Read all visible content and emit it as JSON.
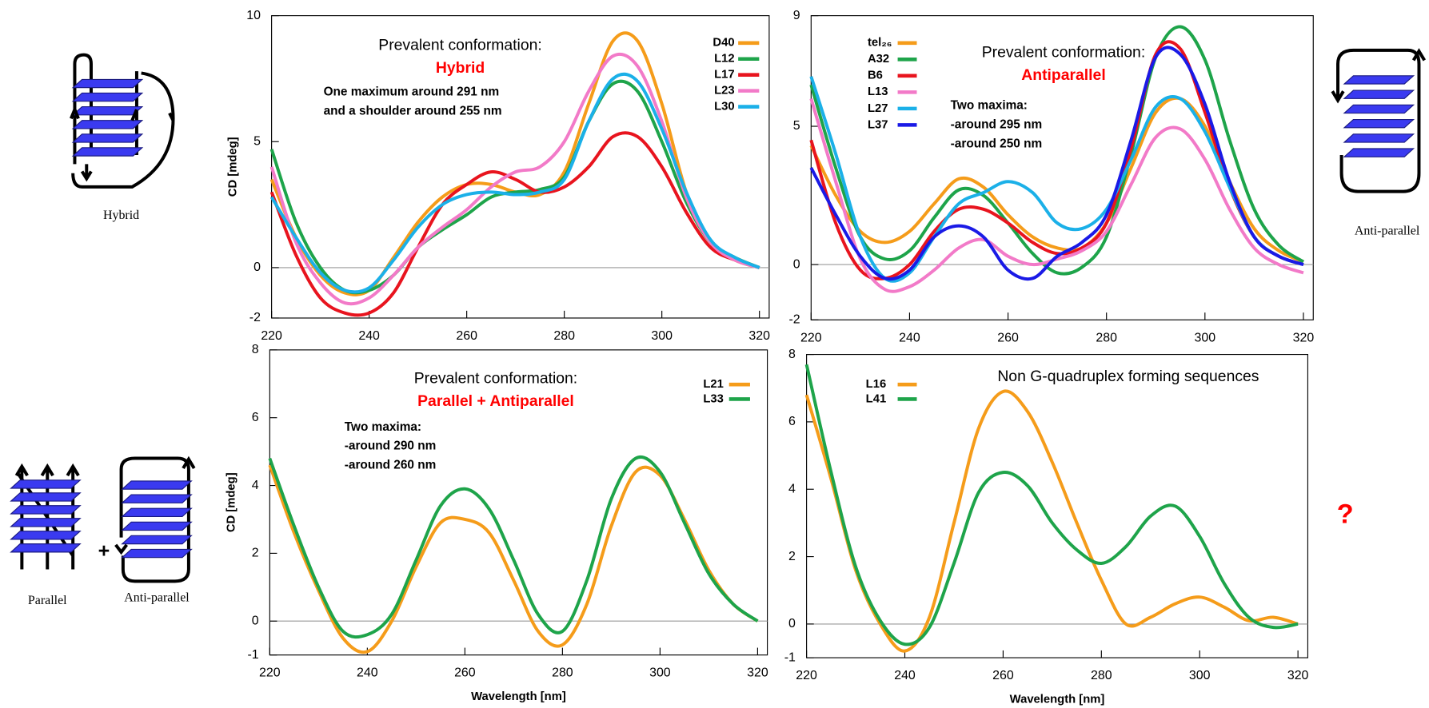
{
  "chart_data": [
    {
      "type": "line",
      "xlim": [
        220,
        322
      ],
      "ylim": [
        -2,
        10
      ],
      "xticks": [
        220,
        240,
        260,
        280,
        300,
        320
      ],
      "yticks": [
        -2,
        0,
        5,
        10
      ],
      "ylabel": "CD [mdeg]",
      "annotations": [
        {
          "text": "Prevalent conformation:"
        },
        {
          "text": "Hybrid",
          "color": "#ff0000",
          "bold": true
        },
        {
          "text": "One maximum around 291 nm",
          "bold": true
        },
        {
          "text": "and a shoulder around 255 nm",
          "bold": true
        }
      ],
      "x": [
        220,
        225,
        230,
        235,
        240,
        245,
        250,
        255,
        260,
        265,
        270,
        275,
        280,
        285,
        290,
        295,
        300,
        305,
        310,
        315,
        320
      ],
      "series": [
        {
          "name": "D40",
          "color": "#f59c1a",
          "values": [
            3.5,
            1.2,
            -0.3,
            -1.0,
            -0.9,
            0.4,
            1.8,
            2.8,
            3.3,
            3.3,
            3.0,
            2.9,
            3.8,
            6.5,
            9.0,
            9.0,
            6.5,
            3.0,
            1.0,
            0.3,
            0.0
          ]
        },
        {
          "name": "L12",
          "color": "#1ea44a",
          "values": [
            4.7,
            1.8,
            0.0,
            -0.9,
            -0.9,
            -0.3,
            0.8,
            1.5,
            2.1,
            2.8,
            3.0,
            3.1,
            3.6,
            5.8,
            7.3,
            7.0,
            5.0,
            2.6,
            1.0,
            0.4,
            0.0
          ]
        },
        {
          "name": "L17",
          "color": "#e8141e",
          "values": [
            3.0,
            0.5,
            -1.2,
            -1.8,
            -1.8,
            -1.0,
            0.8,
            2.5,
            3.3,
            3.8,
            3.5,
            3.0,
            3.2,
            4.0,
            5.2,
            5.2,
            4.0,
            2.2,
            0.8,
            0.3,
            0.0
          ]
        },
        {
          "name": "L23",
          "color": "#f27ac8",
          "values": [
            4.0,
            1.0,
            -0.6,
            -1.4,
            -1.2,
            -0.3,
            0.8,
            1.6,
            2.3,
            3.2,
            3.8,
            4.0,
            5.0,
            7.0,
            8.4,
            8.0,
            5.8,
            2.8,
            1.0,
            0.3,
            0.0
          ]
        },
        {
          "name": "L30",
          "color": "#1bb0e8",
          "values": [
            2.8,
            1.2,
            -0.2,
            -0.9,
            -0.8,
            0.3,
            1.6,
            2.5,
            2.9,
            3.0,
            2.9,
            3.0,
            3.5,
            5.8,
            7.5,
            7.4,
            5.5,
            3.0,
            1.1,
            0.4,
            0.0
          ]
        }
      ]
    },
    {
      "type": "line",
      "xlim": [
        220,
        322
      ],
      "ylim": [
        -2,
        9
      ],
      "xticks": [
        220,
        240,
        260,
        280,
        300,
        320
      ],
      "yticks": [
        -2,
        0,
        5,
        9
      ],
      "annotations": [
        {
          "text": "Prevalent conformation:"
        },
        {
          "text": "Antiparallel",
          "color": "#ff0000",
          "bold": true
        },
        {
          "text": "Two maxima:",
          "bold": true
        },
        {
          "text": "-around 295 nm",
          "bold": true
        },
        {
          "text": "-around 250 nm",
          "bold": true
        }
      ],
      "x": [
        220,
        225,
        230,
        235,
        240,
        245,
        250,
        255,
        260,
        265,
        270,
        275,
        280,
        285,
        290,
        295,
        300,
        305,
        310,
        315,
        320
      ],
      "series": [
        {
          "name": "tel₂₆",
          "color": "#f59c1a",
          "values": [
            4.3,
            2.5,
            1.2,
            0.8,
            1.2,
            2.2,
            3.1,
            2.8,
            1.8,
            1.0,
            0.6,
            0.6,
            1.5,
            3.5,
            5.5,
            6.0,
            5.0,
            3.0,
            1.3,
            0.5,
            0.1
          ]
        },
        {
          "name": "A32",
          "color": "#1ea44a",
          "values": [
            6.5,
            3.5,
            1.0,
            0.2,
            0.5,
            1.7,
            2.7,
            2.5,
            1.5,
            0.4,
            -0.3,
            -0.1,
            1.0,
            4.0,
            7.5,
            8.6,
            7.4,
            4.5,
            2.0,
            0.7,
            0.1
          ]
        },
        {
          "name": "B6",
          "color": "#e8141e",
          "values": [
            4.5,
            1.5,
            -0.2,
            -0.5,
            0.0,
            1.2,
            2.0,
            2.0,
            1.5,
            0.8,
            0.4,
            0.6,
            1.5,
            4.2,
            7.6,
            7.8,
            5.5,
            2.8,
            1.0,
            0.3,
            0.0
          ]
        },
        {
          "name": "L13",
          "color": "#f27ac8",
          "values": [
            6.0,
            3.0,
            0.2,
            -0.9,
            -0.8,
            -0.2,
            0.6,
            0.9,
            0.3,
            0.0,
            0.2,
            0.5,
            1.2,
            2.9,
            4.6,
            4.9,
            3.8,
            2.0,
            0.6,
            0.0,
            -0.3
          ]
        },
        {
          "name": "L27",
          "color": "#1bb0e8",
          "values": [
            6.8,
            4.0,
            1.0,
            -0.5,
            -0.3,
            1.0,
            2.2,
            2.6,
            3.0,
            2.6,
            1.5,
            1.3,
            2.0,
            3.8,
            5.7,
            6.0,
            4.8,
            2.8,
            1.0,
            0.3,
            0.0
          ]
        },
        {
          "name": "L37",
          "color": "#1a1ae6",
          "values": [
            3.5,
            1.8,
            0.3,
            -0.5,
            -0.2,
            1.0,
            1.4,
            1.0,
            -0.2,
            -0.5,
            0.3,
            0.8,
            1.8,
            4.5,
            7.5,
            7.6,
            5.8,
            3.0,
            1.0,
            0.3,
            0.0
          ]
        }
      ]
    },
    {
      "type": "line",
      "xlim": [
        220,
        322
      ],
      "ylim": [
        -1,
        8
      ],
      "xticks": [
        220,
        240,
        260,
        280,
        300,
        320
      ],
      "yticks": [
        -1,
        0,
        2,
        4,
        6,
        8
      ],
      "ylabel": "CD [mdeg]",
      "xlabel": "Wavelength [nm]",
      "annotations": [
        {
          "text": "Prevalent conformation:"
        },
        {
          "text": "Parallel + Antiparallel",
          "color": "#ff0000",
          "bold": true
        },
        {
          "text": "Two maxima:",
          "bold": true
        },
        {
          "text": "-around 290 nm",
          "bold": true
        },
        {
          "text": "-around 260 nm",
          "bold": true
        }
      ],
      "x": [
        220,
        225,
        230,
        235,
        240,
        245,
        250,
        255,
        260,
        265,
        270,
        275,
        280,
        285,
        290,
        295,
        300,
        305,
        310,
        315,
        320
      ],
      "series": [
        {
          "name": "L21",
          "color": "#f59c1a",
          "values": [
            4.6,
            2.6,
            0.9,
            -0.5,
            -0.9,
            0.0,
            1.6,
            2.9,
            3.0,
            2.6,
            1.2,
            -0.3,
            -0.7,
            0.5,
            2.8,
            4.4,
            4.3,
            3.0,
            1.5,
            0.5,
            0.0
          ]
        },
        {
          "name": "L33",
          "color": "#1ea44a",
          "values": [
            4.8,
            2.8,
            1.0,
            -0.3,
            -0.4,
            0.2,
            1.8,
            3.4,
            3.9,
            3.3,
            1.8,
            0.2,
            -0.3,
            1.2,
            3.6,
            4.8,
            4.4,
            2.9,
            1.4,
            0.5,
            0.0
          ]
        }
      ]
    },
    {
      "type": "line",
      "xlim": [
        220,
        322
      ],
      "ylim": [
        -1,
        8
      ],
      "xticks": [
        220,
        240,
        260,
        280,
        300,
        320
      ],
      "yticks": [
        -1,
        0,
        2,
        4,
        6,
        8
      ],
      "xlabel": "Wavelength [nm]",
      "annotations": [
        {
          "text": "Non G-quadruplex forming sequences"
        }
      ],
      "x": [
        220,
        225,
        230,
        235,
        240,
        245,
        250,
        255,
        260,
        265,
        270,
        275,
        280,
        285,
        290,
        295,
        300,
        305,
        310,
        315,
        320
      ],
      "series": [
        {
          "name": "L16",
          "color": "#f59c1a",
          "values": [
            6.8,
            4.3,
            1.6,
            0.0,
            -0.8,
            0.2,
            3.0,
            5.8,
            6.9,
            6.3,
            4.8,
            3.0,
            1.3,
            0.0,
            0.2,
            0.6,
            0.8,
            0.5,
            0.1,
            0.2,
            0.0
          ]
        },
        {
          "name": "L41",
          "color": "#1ea44a",
          "values": [
            7.7,
            4.5,
            1.7,
            0.1,
            -0.6,
            -0.1,
            1.8,
            3.9,
            4.5,
            4.1,
            3.0,
            2.2,
            1.8,
            2.3,
            3.2,
            3.5,
            2.6,
            1.2,
            0.2,
            -0.1,
            0.0
          ]
        }
      ]
    }
  ],
  "diagram_labels": {
    "hybrid": "Hybrid",
    "antiparallel_right": "Anti-parallel",
    "parallel": "Parallel",
    "plus": "+",
    "antiparallel_left": "Anti-parallel",
    "unknown": "?"
  }
}
